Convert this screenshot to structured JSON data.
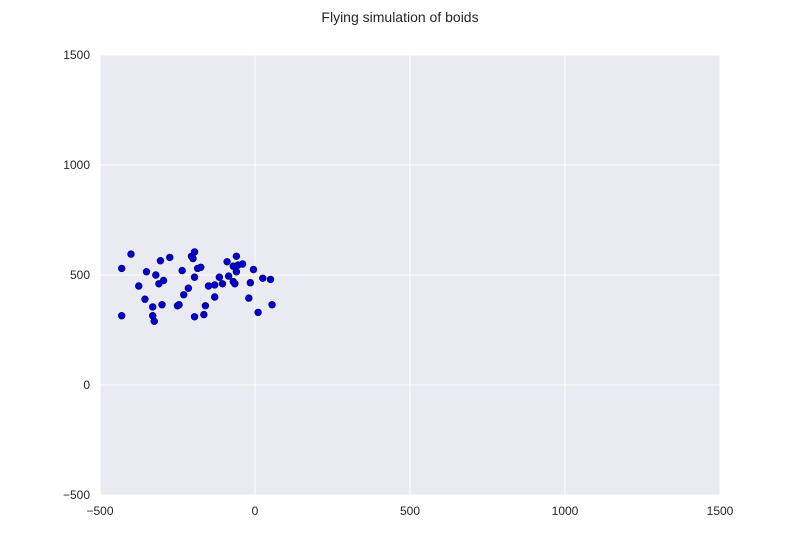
{
  "chart_data": {
    "type": "scatter",
    "title": "Flying simulation of boids",
    "xlabel": "",
    "ylabel": "",
    "xlim": [
      -500,
      1500
    ],
    "ylim": [
      -500,
      1500
    ],
    "xticks": [
      -500,
      0,
      500,
      1000,
      1500
    ],
    "yticks": [
      -500,
      0,
      500,
      1000,
      1500
    ],
    "xtick_labels": [
      "−500",
      "0",
      "500",
      "1000",
      "1500"
    ],
    "ytick_labels": [
      "−500",
      "0",
      "500",
      "1000",
      "1500"
    ],
    "grid": true,
    "style": {
      "plot_background": "#eaeaf2",
      "grid_color": "#ffffff",
      "marker_color": "#0000cc"
    },
    "series": [
      {
        "points": [
          [
            -430,
            530
          ],
          [
            -400,
            595
          ],
          [
            -375,
            450
          ],
          [
            -355,
            390
          ],
          [
            -350,
            515
          ],
          [
            -430,
            315
          ],
          [
            -330,
            355
          ],
          [
            -330,
            315
          ],
          [
            -320,
            500
          ],
          [
            -325,
            290
          ],
          [
            -310,
            460
          ],
          [
            -305,
            565
          ],
          [
            -295,
            475
          ],
          [
            -300,
            365
          ],
          [
            -275,
            580
          ],
          [
            -250,
            360
          ],
          [
            -245,
            365
          ],
          [
            -235,
            520
          ],
          [
            -230,
            410
          ],
          [
            -215,
            440
          ],
          [
            -205,
            585
          ],
          [
            -200,
            575
          ],
          [
            -195,
            605
          ],
          [
            -195,
            490
          ],
          [
            -195,
            310
          ],
          [
            -185,
            530
          ],
          [
            -175,
            535
          ],
          [
            -165,
            320
          ],
          [
            -160,
            360
          ],
          [
            -150,
            450
          ],
          [
            -130,
            455
          ],
          [
            -130,
            400
          ],
          [
            -115,
            490
          ],
          [
            -105,
            460
          ],
          [
            -90,
            560
          ],
          [
            -85,
            495
          ],
          [
            -70,
            540
          ],
          [
            -70,
            470
          ],
          [
            -65,
            460
          ],
          [
            -60,
            515
          ],
          [
            -60,
            585
          ],
          [
            -55,
            545
          ],
          [
            -40,
            550
          ],
          [
            -20,
            395
          ],
          [
            -15,
            465
          ],
          [
            -5,
            525
          ],
          [
            10,
            330
          ],
          [
            25,
            485
          ],
          [
            50,
            480
          ],
          [
            55,
            365
          ]
        ]
      }
    ]
  }
}
